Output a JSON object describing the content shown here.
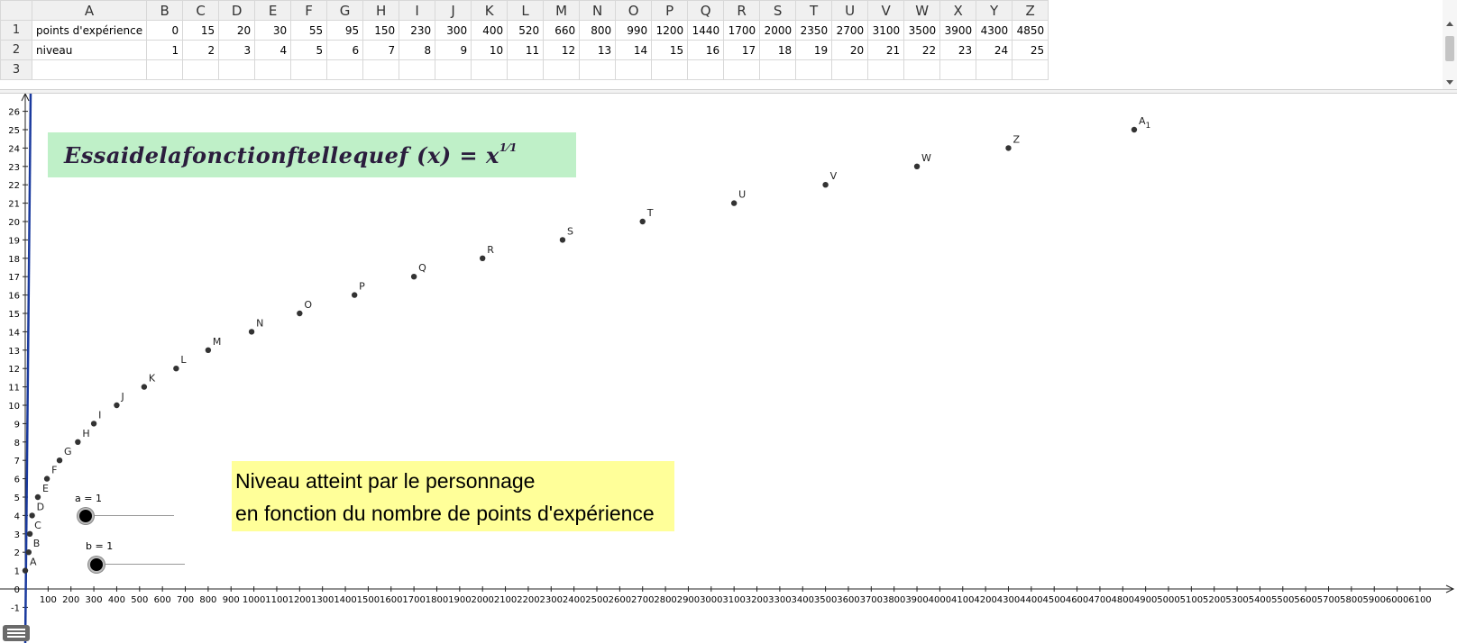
{
  "spreadsheet": {
    "column_headers": [
      "A",
      "B",
      "C",
      "D",
      "E",
      "F",
      "G",
      "H",
      "I",
      "J",
      "K",
      "L",
      "M",
      "N",
      "O",
      "P",
      "Q",
      "R",
      "S",
      "T",
      "U",
      "V",
      "W",
      "X",
      "Y",
      "Z"
    ],
    "row_headers": [
      "1",
      "2",
      "3"
    ],
    "rows": [
      [
        "points d'expérience",
        "0",
        "15",
        "20",
        "30",
        "55",
        "95",
        "150",
        "230",
        "300",
        "400",
        "520",
        "660",
        "800",
        "990",
        "1200",
        "1440",
        "1700",
        "2000",
        "2350",
        "2700",
        "3100",
        "3500",
        "3900",
        "4300",
        "4850"
      ],
      [
        "niveau",
        "1",
        "2",
        "3",
        "4",
        "5",
        "6",
        "7",
        "8",
        "9",
        "10",
        "11",
        "12",
        "13",
        "14",
        "15",
        "16",
        "17",
        "18",
        "19",
        "20",
        "21",
        "22",
        "23",
        "24",
        "25"
      ],
      [
        "",
        "",
        "",
        "",
        "",
        "",
        "",
        "",
        "",
        "",
        "",
        "",
        "",
        "",
        "",
        "",
        "",
        "",
        "",
        "",
        "",
        "",
        "",
        "",
        "",
        ""
      ]
    ]
  },
  "graph": {
    "title": {
      "main": "Essaidelafonctionftellequef (x) = x",
      "exponent": "1⁄1"
    },
    "caption": {
      "line1": "Niveau atteint par le personnage",
      "line2": "en fonction du nombre de points d'expérience"
    },
    "sliders": [
      {
        "label": "a = 1",
        "value": 1
      },
      {
        "label": "b = 1",
        "value": 1
      }
    ]
  },
  "chart_data": {
    "type": "scatter",
    "title": "",
    "xlabel": "",
    "ylabel": "",
    "xlim": [
      0,
      6100
    ],
    "ylim": [
      -1,
      26
    ],
    "x_ticks": [
      100,
      200,
      300,
      400,
      500,
      600,
      700,
      800,
      900,
      1000,
      1100,
      1200,
      1300,
      1400,
      1500,
      1600,
      1700,
      1800,
      1900,
      2000,
      2100,
      2200,
      2300,
      2400,
      2500,
      2600,
      2700,
      2800,
      2900,
      3000,
      3100,
      3200,
      3300,
      3400,
      3500,
      3600,
      3700,
      3800,
      3900,
      4000,
      4100,
      4200,
      4300,
      4400,
      4500,
      4600,
      4700,
      4800,
      4900,
      5000,
      5100,
      5200,
      5300,
      5400,
      5500,
      5600,
      5700,
      5800,
      5900,
      6000,
      6100
    ],
    "y_ticks": [
      -1,
      0,
      1,
      2,
      3,
      4,
      5,
      6,
      7,
      8,
      9,
      10,
      11,
      12,
      13,
      14,
      15,
      16,
      17,
      18,
      19,
      20,
      21,
      22,
      23,
      24,
      25,
      26
    ],
    "grid": false,
    "points": [
      {
        "name": "A",
        "x": 0,
        "y": 1
      },
      {
        "name": "B",
        "x": 15,
        "y": 2
      },
      {
        "name": "C",
        "x": 20,
        "y": 3
      },
      {
        "name": "D",
        "x": 30,
        "y": 4
      },
      {
        "name": "E",
        "x": 55,
        "y": 5
      },
      {
        "name": "F",
        "x": 95,
        "y": 6
      },
      {
        "name": "G",
        "x": 150,
        "y": 7
      },
      {
        "name": "H",
        "x": 230,
        "y": 8
      },
      {
        "name": "I",
        "x": 300,
        "y": 9
      },
      {
        "name": "J",
        "x": 400,
        "y": 10
      },
      {
        "name": "K",
        "x": 520,
        "y": 11
      },
      {
        "name": "L",
        "x": 660,
        "y": 12
      },
      {
        "name": "M",
        "x": 800,
        "y": 13
      },
      {
        "name": "N",
        "x": 990,
        "y": 14
      },
      {
        "name": "O",
        "x": 1200,
        "y": 15
      },
      {
        "name": "P",
        "x": 1440,
        "y": 16
      },
      {
        "name": "Q",
        "x": 1700,
        "y": 17
      },
      {
        "name": "R",
        "x": 2000,
        "y": 18
      },
      {
        "name": "S",
        "x": 2350,
        "y": 19
      },
      {
        "name": "T",
        "x": 2700,
        "y": 20
      },
      {
        "name": "U",
        "x": 3100,
        "y": 21
      },
      {
        "name": "V",
        "x": 3500,
        "y": 22
      },
      {
        "name": "W",
        "x": 3900,
        "y": 23
      },
      {
        "name": "Z",
        "x": 4300,
        "y": 24
      },
      {
        "name": "A",
        "sub": "1",
        "x": 4850,
        "y": 25
      }
    ],
    "function_line": {
      "color": "#1a3a9e"
    },
    "point_color": "#333333"
  }
}
